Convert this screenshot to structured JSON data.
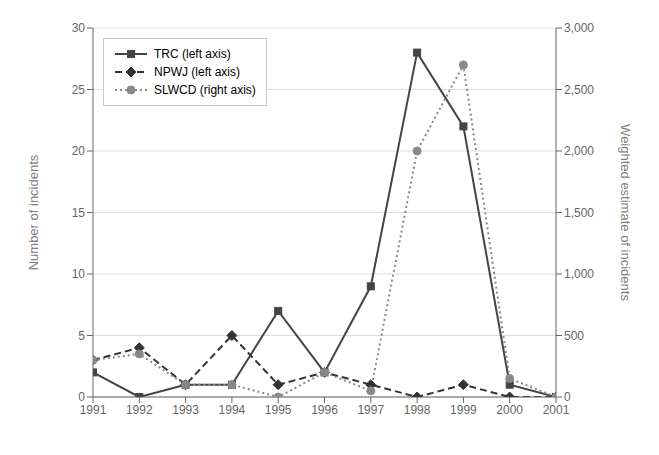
{
  "chart_data": {
    "type": "line",
    "x": [
      1991,
      1992,
      1993,
      1994,
      1995,
      1996,
      1997,
      1998,
      1999,
      2000,
      2001
    ],
    "xlim": [
      1991,
      2001
    ],
    "xticks": [
      1991,
      1992,
      1993,
      1994,
      1995,
      1996,
      1997,
      1998,
      1999,
      2000,
      2001
    ],
    "ylabel": "Number of incidents",
    "y2label": "Weighted estimate of incidents",
    "ylim": [
      0,
      30
    ],
    "yticks": [
      0,
      5,
      10,
      15,
      20,
      25,
      30
    ],
    "y2lim": [
      0,
      3000
    ],
    "y2ticks": [
      0,
      500,
      {
        "value": 1000,
        "label": "1,000"
      },
      {
        "value": 1500,
        "label": "1,500"
      },
      {
        "value": 2000,
        "label": "2,000"
      },
      {
        "value": 2500,
        "label": "2,500"
      },
      {
        "value": 3000,
        "label": "3,000"
      }
    ],
    "grid": true,
    "legend": "upper left",
    "series": [
      {
        "name": "TRC (left axis)",
        "color": "#444444",
        "values": [
          2,
          0,
          1,
          1,
          7,
          2,
          9,
          28,
          22,
          1,
          0
        ],
        "axis": "y",
        "marker": "square",
        "line_style": "solid"
      },
      {
        "name": "NPWJ (left axis)",
        "color": "#333333",
        "values": [
          3,
          4,
          1,
          5,
          1,
          2,
          1,
          0,
          1,
          0,
          0
        ],
        "axis": "y",
        "marker": "diamond",
        "line_style": "dashed"
      },
      {
        "name": "SLWCD (right axis)",
        "color": "#888888",
        "values": [
          300,
          350,
          100,
          100,
          0,
          200,
          50,
          2000,
          2700,
          150,
          0
        ],
        "axis": "y2",
        "marker": "circle",
        "line_style": "dotted"
      }
    ]
  }
}
